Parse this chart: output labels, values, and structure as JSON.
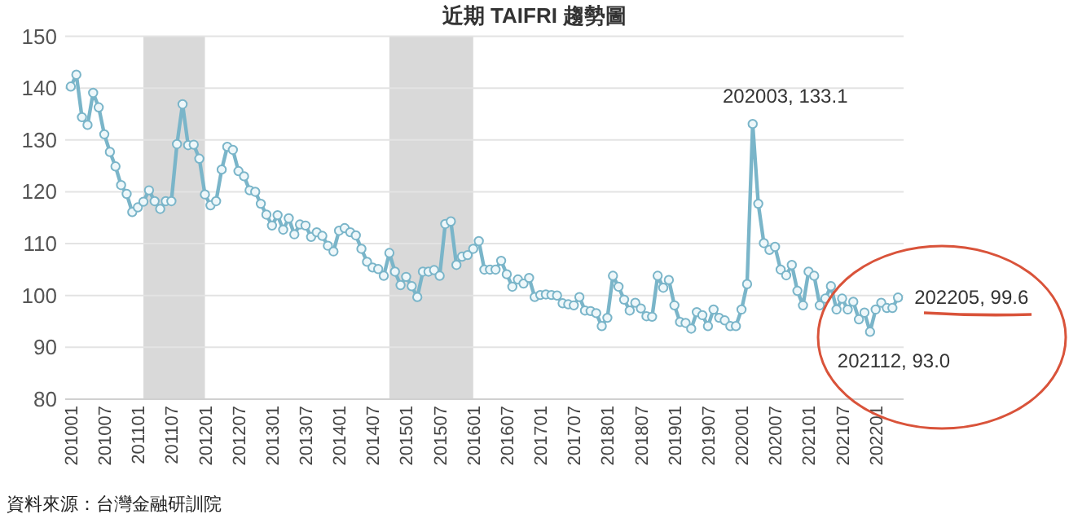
{
  "chart_data": {
    "type": "line",
    "title": "近期 TAIFRI 趨勢圖",
    "x": [
      "2010-01",
      "2010-02",
      "2010-03",
      "2010-04",
      "2010-05",
      "2010-06",
      "2010-07",
      "2010-08",
      "2010-09",
      "2010-10",
      "2010-11",
      "2010-12",
      "2011-01",
      "2011-02",
      "2011-03",
      "2011-04",
      "2011-05",
      "2011-06",
      "2011-07",
      "2011-08",
      "2011-09",
      "2011-10",
      "2011-11",
      "2011-12",
      "2012-01",
      "2012-02",
      "2012-03",
      "2012-04",
      "2012-05",
      "2012-06",
      "2012-07",
      "2012-08",
      "2012-09",
      "2012-10",
      "2012-11",
      "2012-12",
      "2013-01",
      "2013-02",
      "2013-03",
      "2013-04",
      "2013-05",
      "2013-06",
      "2013-07",
      "2013-08",
      "2013-09",
      "2013-10",
      "2013-11",
      "2013-12",
      "2014-01",
      "2014-02",
      "2014-03",
      "2014-04",
      "2014-05",
      "2014-06",
      "2014-07",
      "2014-08",
      "2014-09",
      "2014-10",
      "2014-11",
      "2014-12",
      "2015-01",
      "2015-02",
      "2015-03",
      "2015-04",
      "2015-05",
      "2015-06",
      "2015-07",
      "2015-08",
      "2015-09",
      "2015-10",
      "2015-11",
      "2015-12",
      "2016-01",
      "2016-02",
      "2016-03",
      "2016-04",
      "2016-05",
      "2016-06",
      "2016-07",
      "2016-08",
      "2016-09",
      "2016-10",
      "2016-11",
      "2016-12",
      "2017-01",
      "2017-02",
      "2017-03",
      "2017-04",
      "2017-05",
      "2017-06",
      "2017-07",
      "2017-08",
      "2017-09",
      "2017-10",
      "2017-11",
      "2017-12",
      "2018-01",
      "2018-02",
      "2018-03",
      "2018-04",
      "2018-05",
      "2018-06",
      "2018-07",
      "2018-08",
      "2018-09",
      "2018-10",
      "2018-11",
      "2018-12",
      "2019-01",
      "2019-02",
      "2019-03",
      "2019-04",
      "2019-05",
      "2019-06",
      "2019-07",
      "2019-08",
      "2019-09",
      "2019-10",
      "2019-11",
      "2019-12",
      "2020-01",
      "2020-02",
      "2020-03",
      "2020-04",
      "2020-05",
      "2020-06",
      "2020-07",
      "2020-08",
      "2020-09",
      "2020-10",
      "2020-11",
      "2020-12",
      "2021-01",
      "2021-02",
      "2021-03",
      "2021-04",
      "2021-05",
      "2021-06",
      "2021-07",
      "2021-08",
      "2021-09",
      "2021-10",
      "2021-11",
      "2021-12",
      "2022-01",
      "2022-02",
      "2022-03",
      "2022-04",
      "2022-05"
    ],
    "series": [
      {
        "color": "#7ab5c9",
        "values": [
          140.3,
          142.6,
          134.4,
          132.9,
          139.1,
          136.3,
          131.1,
          127.7,
          124.9,
          121.3,
          119.6,
          116.1,
          117.0,
          118.1,
          120.3,
          118.2,
          116.7,
          118.2,
          118.2,
          129.2,
          136.9,
          129.0,
          129.1,
          126.4,
          119.5,
          117.4,
          118.2,
          124.3,
          128.7,
          128.1,
          124.0,
          123.0,
          120.3,
          120.0,
          117.7,
          115.6,
          113.5,
          115.5,
          112.7,
          114.9,
          111.8,
          113.7,
          113.5,
          111.3,
          112.2,
          111.5,
          109.6,
          108.5,
          112.5,
          113.0,
          112.2,
          111.6,
          109.0,
          106.5,
          105.4,
          105.1,
          103.8,
          108.2,
          104.6,
          102.0,
          103.6,
          101.8,
          99.7,
          104.6,
          104.6,
          104.9,
          103.8,
          113.8,
          114.3,
          105.9,
          107.5,
          107.8,
          109.0,
          110.5,
          105.0,
          105.0,
          105.0,
          106.7,
          104.1,
          101.7,
          103.1,
          102.3,
          103.4,
          99.7,
          100.1,
          100.2,
          100.1,
          100.0,
          98.5,
          98.3,
          98.1,
          99.7,
          97.1,
          97.0,
          96.6,
          94.1,
          95.7,
          103.8,
          101.7,
          99.2,
          97.1,
          98.6,
          97.5,
          96.0,
          95.9,
          103.8,
          101.5,
          103.0,
          98.1,
          94.9,
          94.7,
          93.6,
          96.8,
          96.2,
          94.1,
          97.3,
          95.7,
          95.2,
          94.1,
          94.1,
          97.3,
          102.2,
          133.1,
          117.7,
          110.1,
          108.8,
          109.4,
          105.0,
          103.9,
          105.9,
          100.9,
          98.1,
          104.6,
          103.8,
          98.1,
          99.4,
          101.8,
          97.3,
          99.4,
          97.3,
          98.8,
          95.4,
          96.7,
          93.0,
          97.3,
          98.6,
          97.6,
          97.6,
          99.6
        ]
      }
    ],
    "xlim": [
      "2009-12",
      "2022-06"
    ],
    "xticks": [
      {
        "value": "2010-01",
        "label": "201001"
      },
      {
        "value": "2010-07",
        "label": "201007"
      },
      {
        "value": "2011-01",
        "label": "201101"
      },
      {
        "value": "2011-07",
        "label": "201107"
      },
      {
        "value": "2012-01",
        "label": "201201"
      },
      {
        "value": "2012-07",
        "label": "201207"
      },
      {
        "value": "2013-01",
        "label": "201301"
      },
      {
        "value": "2013-07",
        "label": "201307"
      },
      {
        "value": "2014-01",
        "label": "201401"
      },
      {
        "value": "2014-07",
        "label": "201407"
      },
      {
        "value": "2015-01",
        "label": "201501"
      },
      {
        "value": "2015-07",
        "label": "201507"
      },
      {
        "value": "2016-01",
        "label": "201601"
      },
      {
        "value": "2016-07",
        "label": "201607"
      },
      {
        "value": "2017-01",
        "label": "201701"
      },
      {
        "value": "2017-07",
        "label": "201707"
      },
      {
        "value": "2018-01",
        "label": "201801"
      },
      {
        "value": "2018-07",
        "label": "201807"
      },
      {
        "value": "2019-01",
        "label": "201901"
      },
      {
        "value": "2019-07",
        "label": "201907"
      },
      {
        "value": "2020-01",
        "label": "202001"
      },
      {
        "value": "2020-07",
        "label": "202007"
      },
      {
        "value": "2021-01",
        "label": "202101"
      },
      {
        "value": "2021-07",
        "label": "202107"
      },
      {
        "value": "2022-01",
        "label": "202201"
      }
    ],
    "ylim": [
      80,
      150
    ],
    "yticks": [
      80,
      90,
      100,
      110,
      120,
      130,
      140,
      150
    ],
    "grid": "y",
    "marker": "circle",
    "line_style": "solid",
    "bands": [
      {
        "axis": "x",
        "from": "2011-02",
        "to": "2012-01",
        "color": "#d9d9d9"
      },
      {
        "axis": "x",
        "from": "2014-10",
        "to": "2016-01",
        "color": "#d9d9d9"
      }
    ],
    "annotations": [
      {
        "text": "202003, 133.1",
        "x": "2020-03",
        "y": 133.1
      },
      {
        "text": "202205, 99.6",
        "x": "2022-05",
        "y": 99.6
      },
      {
        "text": "202112, 93.0",
        "x": "2021-12",
        "y": 93.0
      },
      "資料來源：台灣金融研訓院"
    ]
  }
}
